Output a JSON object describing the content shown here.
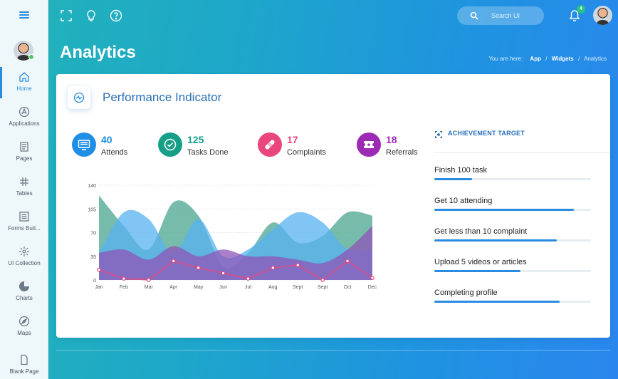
{
  "sidebar": {
    "items": [
      {
        "label": "Home",
        "icon": "home-icon"
      },
      {
        "label": "Applications",
        "icon": "apps-icon"
      },
      {
        "label": "Pages",
        "icon": "pages-icon"
      },
      {
        "label": "Tables",
        "icon": "hash-icon"
      },
      {
        "label": "Forms Butt...",
        "icon": "form-icon"
      },
      {
        "label": "UI Collection",
        "icon": "flower-icon"
      },
      {
        "label": "Charts",
        "icon": "pie-icon"
      },
      {
        "label": "Maps",
        "icon": "compass-icon"
      },
      {
        "label": "Blank Page",
        "icon": "file-icon"
      }
    ]
  },
  "topbar": {
    "search_placeholder": "Search UI",
    "notification_count": "4"
  },
  "page": {
    "title": "Analytics",
    "breadcrumb_prefix": "You are here:",
    "breadcrumb": [
      "App",
      "Widgets",
      "Analytics"
    ]
  },
  "card": {
    "title": "Performance Indicator",
    "stats": [
      {
        "value": "40",
        "label": "Attends",
        "color": "#1f8fe6"
      },
      {
        "value": "125",
        "label": "Tasks Done",
        "color": "#159f86"
      },
      {
        "value": "17",
        "label": "Complaints",
        "color": "#e8467c"
      },
      {
        "value": "18",
        "label": "Referrals",
        "color": "#9d2ab4"
      }
    ],
    "achievement": {
      "heading": "ACHIEVEMENT TARGET",
      "tasks": [
        {
          "label": "Finish 100 task",
          "progress": 0.24
        },
        {
          "label": "Get 10 attending",
          "progress": 0.89
        },
        {
          "label": "Get less than 10 complaint",
          "progress": 0.78
        },
        {
          "label": "Upload 5 videos or articles",
          "progress": 0.55
        },
        {
          "label": "Completing profile",
          "progress": 0.8
        }
      ]
    }
  },
  "chart_data": {
    "type": "area",
    "categories": [
      "Jan",
      "Feb",
      "Mar",
      "Apr",
      "May",
      "Jun",
      "Jul",
      "Aug",
      "Sept",
      "Sept",
      "Oct",
      "Dec"
    ],
    "yticks": [
      0,
      35,
      70,
      105,
      140
    ],
    "ylim": [
      0,
      140
    ],
    "grid": true,
    "series": [
      {
        "values": [
          125,
          80,
          45,
          115,
          95,
          20,
          40,
          85,
          55,
          65,
          100,
          95
        ],
        "color": "#4aa68e"
      },
      {
        "values": [
          40,
          100,
          90,
          40,
          90,
          35,
          45,
          75,
          100,
          85,
          45,
          45
        ],
        "color": "#57b2f2"
      },
      {
        "values": [
          40,
          45,
          30,
          50,
          35,
          45,
          35,
          35,
          30,
          25,
          45,
          80
        ],
        "color": "#8e56b8"
      },
      {
        "values": [
          15,
          2,
          0,
          28,
          18,
          10,
          2,
          18,
          22,
          0,
          28,
          3
        ],
        "color": "#e8467c"
      }
    ]
  }
}
